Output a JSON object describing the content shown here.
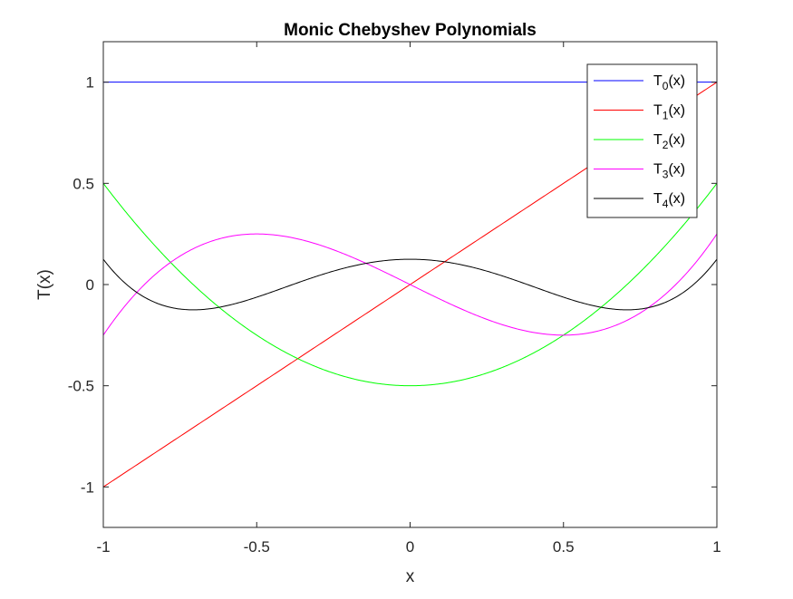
{
  "chart_data": {
    "type": "line",
    "title": "Monic Chebyshev Polynomials",
    "xlabel": "x",
    "ylabel": "T(x)",
    "xlim": [
      -1,
      1
    ],
    "ylim": [
      -1.2,
      1.2
    ],
    "xticks": [
      -1,
      -0.5,
      0,
      0.5,
      1
    ],
    "xtick_labels": [
      "-1",
      "-0.5",
      "0",
      "0.5",
      "1"
    ],
    "yticks": [
      -1,
      -0.5,
      0,
      0.5,
      1
    ],
    "ytick_labels": [
      "-1",
      "-0.5",
      "0",
      "0.5",
      "1"
    ],
    "grid": false,
    "legend_position": "top-right",
    "x_samples": [
      -1,
      -0.9,
      -0.8,
      -0.7,
      -0.6,
      -0.5,
      -0.4,
      -0.3,
      -0.2,
      -0.1,
      0,
      0.1,
      0.2,
      0.3,
      0.4,
      0.5,
      0.6,
      0.7,
      0.8,
      0.9,
      1
    ],
    "series": [
      {
        "name": "T",
        "sub": "0",
        "suffix": "(x)",
        "color": "#0000ff",
        "values": [
          1,
          1,
          1,
          1,
          1,
          1,
          1,
          1,
          1,
          1,
          1,
          1,
          1,
          1,
          1,
          1,
          1,
          1,
          1,
          1,
          1
        ]
      },
      {
        "name": "T",
        "sub": "1",
        "suffix": "(x)",
        "color": "#ff0000",
        "values": [
          -1,
          -0.9,
          -0.8,
          -0.7,
          -0.6,
          -0.5,
          -0.4,
          -0.3,
          -0.2,
          -0.1,
          0,
          0.1,
          0.2,
          0.3,
          0.4,
          0.5,
          0.6,
          0.7,
          0.8,
          0.9,
          1
        ]
      },
      {
        "name": "T",
        "sub": "2",
        "suffix": "(x)",
        "color": "#00ff00",
        "values": [
          0.5,
          0.31,
          0.14,
          -0.01,
          -0.14,
          -0.25,
          -0.34,
          -0.41,
          -0.46,
          -0.49,
          -0.5,
          -0.49,
          -0.46,
          -0.41,
          -0.34,
          -0.25,
          -0.14,
          -0.01,
          0.14,
          0.31,
          0.5
        ]
      },
      {
        "name": "T",
        "sub": "3",
        "suffix": "(x)",
        "color": "#ff00ff",
        "values": [
          -0.25,
          -0.054,
          0.092,
          0.182,
          0.234,
          0.25,
          0.236,
          0.198,
          0.142,
          0.074,
          0,
          -0.074,
          -0.142,
          -0.198,
          -0.236,
          -0.25,
          -0.234,
          -0.182,
          -0.092,
          0.054,
          0.25
        ]
      },
      {
        "name": "T",
        "sub": "4",
        "suffix": "(x)",
        "color": "#000000",
        "values": [
          0.125,
          -0.026,
          -0.108,
          -0.124,
          -0.097,
          -0.047,
          0.011,
          0.066,
          0.105,
          0.122,
          0.125,
          0.122,
          0.105,
          0.066,
          0.011,
          -0.047,
          -0.097,
          -0.124,
          -0.108,
          -0.026,
          0.125
        ]
      }
    ]
  }
}
